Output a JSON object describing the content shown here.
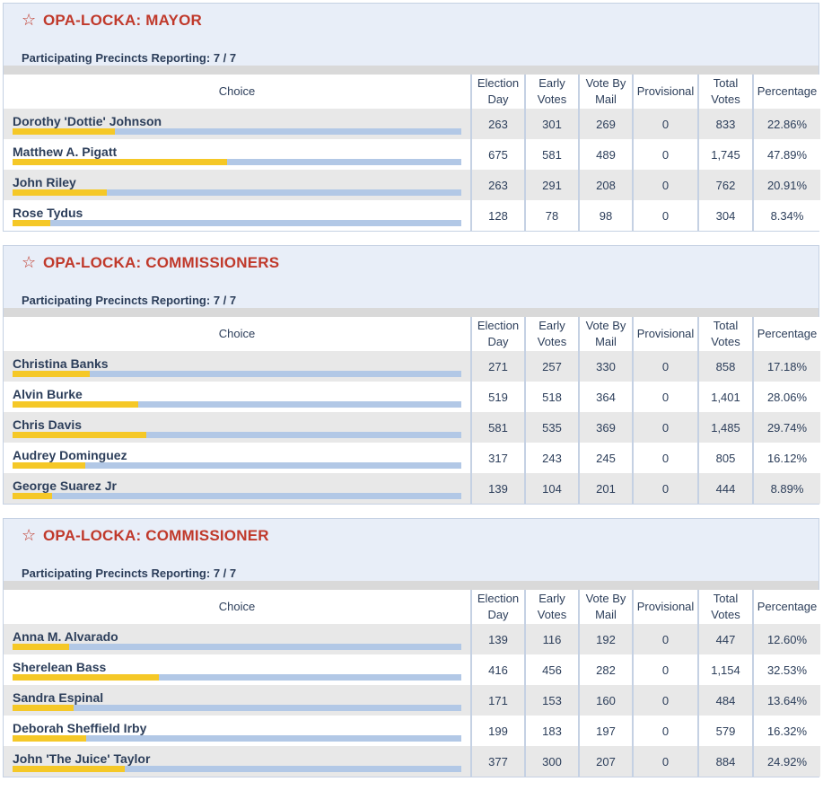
{
  "columns": {
    "choice": "Choice",
    "election_day": [
      "Election",
      "Day"
    ],
    "early_votes": [
      "Early",
      "Votes"
    ],
    "vote_by_mail": [
      "Vote By",
      "Mail"
    ],
    "provisional": "Provisional",
    "total_votes": [
      "Total",
      "Votes"
    ],
    "percentage": "Percentage"
  },
  "colors": {
    "title": "#c0392b",
    "bar_fill": "#f5c827",
    "bar_track": "#b2c8e6",
    "header_bg": "#e8eef8"
  },
  "races": [
    {
      "title": "OPA-LOCKA: MAYOR",
      "reporting": "Participating Precincts Reporting: 7 / 7",
      "candidates": [
        {
          "name": "Dorothy 'Dottie' Johnson",
          "election_day": "263",
          "early_votes": "301",
          "vote_by_mail": "269",
          "provisional": "0",
          "total_votes": "833",
          "percentage": "22.86%",
          "pct": 22.86
        },
        {
          "name": "Matthew A. Pigatt",
          "election_day": "675",
          "early_votes": "581",
          "vote_by_mail": "489",
          "provisional": "0",
          "total_votes": "1,745",
          "percentage": "47.89%",
          "pct": 47.89
        },
        {
          "name": "John Riley",
          "election_day": "263",
          "early_votes": "291",
          "vote_by_mail": "208",
          "provisional": "0",
          "total_votes": "762",
          "percentage": "20.91%",
          "pct": 20.91
        },
        {
          "name": "Rose Tydus",
          "election_day": "128",
          "early_votes": "78",
          "vote_by_mail": "98",
          "provisional": "0",
          "total_votes": "304",
          "percentage": "8.34%",
          "pct": 8.34
        }
      ]
    },
    {
      "title": "OPA-LOCKA: COMMISSIONERS",
      "reporting": "Participating Precincts Reporting: 7 / 7",
      "candidates": [
        {
          "name": "Christina Banks",
          "election_day": "271",
          "early_votes": "257",
          "vote_by_mail": "330",
          "provisional": "0",
          "total_votes": "858",
          "percentage": "17.18%",
          "pct": 17.18
        },
        {
          "name": "Alvin Burke",
          "election_day": "519",
          "early_votes": "518",
          "vote_by_mail": "364",
          "provisional": "0",
          "total_votes": "1,401",
          "percentage": "28.06%",
          "pct": 28.06
        },
        {
          "name": "Chris Davis",
          "election_day": "581",
          "early_votes": "535",
          "vote_by_mail": "369",
          "provisional": "0",
          "total_votes": "1,485",
          "percentage": "29.74%",
          "pct": 29.74
        },
        {
          "name": "Audrey Dominguez",
          "election_day": "317",
          "early_votes": "243",
          "vote_by_mail": "245",
          "provisional": "0",
          "total_votes": "805",
          "percentage": "16.12%",
          "pct": 16.12
        },
        {
          "name": "George Suarez Jr",
          "election_day": "139",
          "early_votes": "104",
          "vote_by_mail": "201",
          "provisional": "0",
          "total_votes": "444",
          "percentage": "8.89%",
          "pct": 8.89
        }
      ]
    },
    {
      "title": "OPA-LOCKA: COMMISSIONER",
      "reporting": "Participating Precincts Reporting: 7 / 7",
      "candidates": [
        {
          "name": "Anna M. Alvarado",
          "election_day": "139",
          "early_votes": "116",
          "vote_by_mail": "192",
          "provisional": "0",
          "total_votes": "447",
          "percentage": "12.60%",
          "pct": 12.6
        },
        {
          "name": "Sherelean Bass",
          "election_day": "416",
          "early_votes": "456",
          "vote_by_mail": "282",
          "provisional": "0",
          "total_votes": "1,154",
          "percentage": "32.53%",
          "pct": 32.53
        },
        {
          "name": "Sandra Espinal",
          "election_day": "171",
          "early_votes": "153",
          "vote_by_mail": "160",
          "provisional": "0",
          "total_votes": "484",
          "percentage": "13.64%",
          "pct": 13.64
        },
        {
          "name": "Deborah Sheffield Irby",
          "election_day": "199",
          "early_votes": "183",
          "vote_by_mail": "197",
          "provisional": "0",
          "total_votes": "579",
          "percentage": "16.32%",
          "pct": 16.32
        },
        {
          "name": "John 'The Juice' Taylor",
          "election_day": "377",
          "early_votes": "300",
          "vote_by_mail": "207",
          "provisional": "0",
          "total_votes": "884",
          "percentage": "24.92%",
          "pct": 24.92
        }
      ]
    }
  ]
}
